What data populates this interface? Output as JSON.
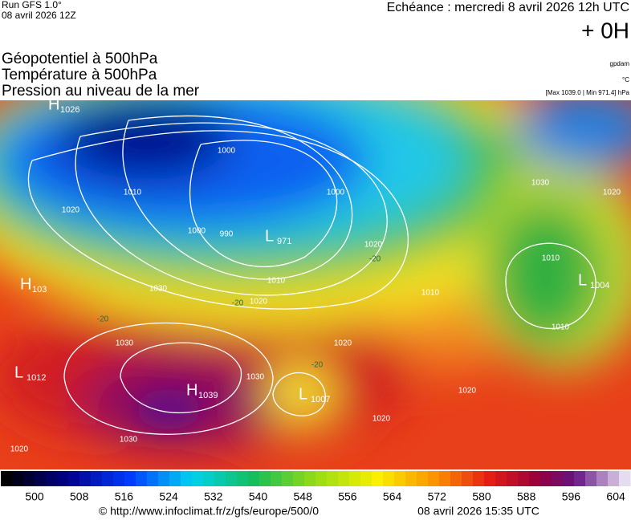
{
  "header": {
    "run": "Run GFS 1.0°",
    "date": "08 avril 2026 12Z",
    "echeance": "Echéance : mercredi 8 avril 2026 12h UTC",
    "offset": "+ 0H",
    "titles": [
      "Géopotentiel à 500hPa",
      "Température à 500hPa",
      "Pression au niveau de la mer"
    ],
    "unit_geo": "gpdam",
    "unit_temp": "°C",
    "range": "[Max 1039.0 | Min 971.4] hPa"
  },
  "map": {
    "centers": [
      {
        "letter": "H",
        "value": "1026"
      },
      {
        "letter": "L",
        "value": "971"
      },
      {
        "letter": "H",
        "value": "103"
      },
      {
        "letter": "L",
        "value": "1012"
      },
      {
        "letter": "H",
        "value": "1039"
      },
      {
        "letter": "L",
        "value": "1007"
      },
      {
        "letter": "L",
        "value": "1004"
      }
    ],
    "isobars": [
      "1000",
      "1010",
      "1020",
      "1000",
      "990",
      "1000",
      "1010",
      "1020",
      "1030",
      "1030",
      "1030",
      "1030",
      "1020",
      "1020",
      "1020",
      "1020",
      "1010",
      "1010",
      "1010",
      "1030",
      "1020",
      "1020"
    ],
    "isotherms": [
      "-20",
      "-20",
      "-20",
      "-20"
    ]
  },
  "legend": {
    "ticks": [
      500,
      508,
      516,
      524,
      532,
      540,
      548,
      556,
      564,
      572,
      580,
      588,
      596,
      604
    ]
  },
  "footer": {
    "url": "© http://www.infoclimat.fr/z/gfs/europe/500/0",
    "timestamp": "08 avril 2026 15:35 UTC"
  }
}
